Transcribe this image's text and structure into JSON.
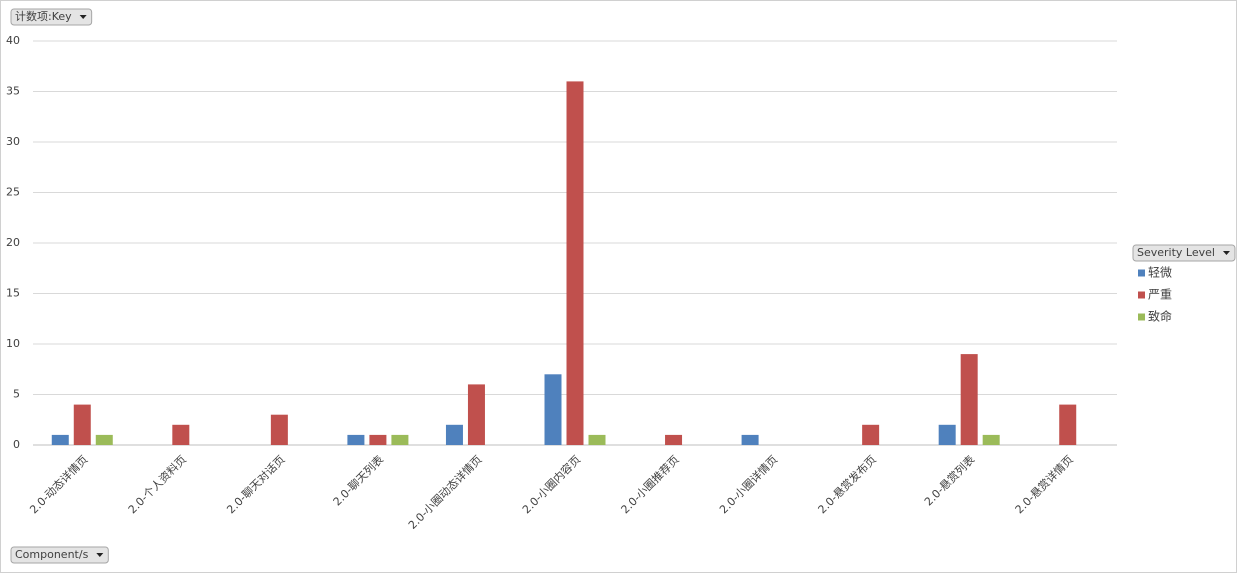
{
  "chart_data": {
    "type": "bar",
    "value_field_button": "计数项:Key",
    "legend_field_button": "Severity Level",
    "axis_field_button": "Component/s",
    "categories": [
      "2.0-动态详情页",
      "2.0-个人资料页",
      "2.0-聊天对话页",
      "2.0-聊天列表",
      "2.0-小圈动态详情页",
      "2.0-小圈内容页",
      "2.0-小圈推荐页",
      "2.0-小圈详情页",
      "2.0-悬赏发布页",
      "2.0-悬赏列表",
      "2.0-悬赏详情页"
    ],
    "series": [
      {
        "name": "轻微",
        "color": "#4f81bd",
        "values": [
          1,
          null,
          null,
          1,
          2,
          7,
          null,
          1,
          null,
          2,
          null
        ]
      },
      {
        "name": "严重",
        "color": "#c0504d",
        "values": [
          4,
          2,
          3,
          1,
          6,
          36,
          1,
          null,
          2,
          9,
          4
        ]
      },
      {
        "name": "致命",
        "color": "#9bbb59",
        "values": [
          1,
          null,
          null,
          1,
          null,
          1,
          null,
          null,
          null,
          1,
          null
        ]
      }
    ],
    "ylim": [
      0,
      40
    ],
    "yticks": [
      0,
      5,
      10,
      15,
      20,
      25,
      30,
      35,
      40
    ],
    "grid": true,
    "legend": "right"
  }
}
